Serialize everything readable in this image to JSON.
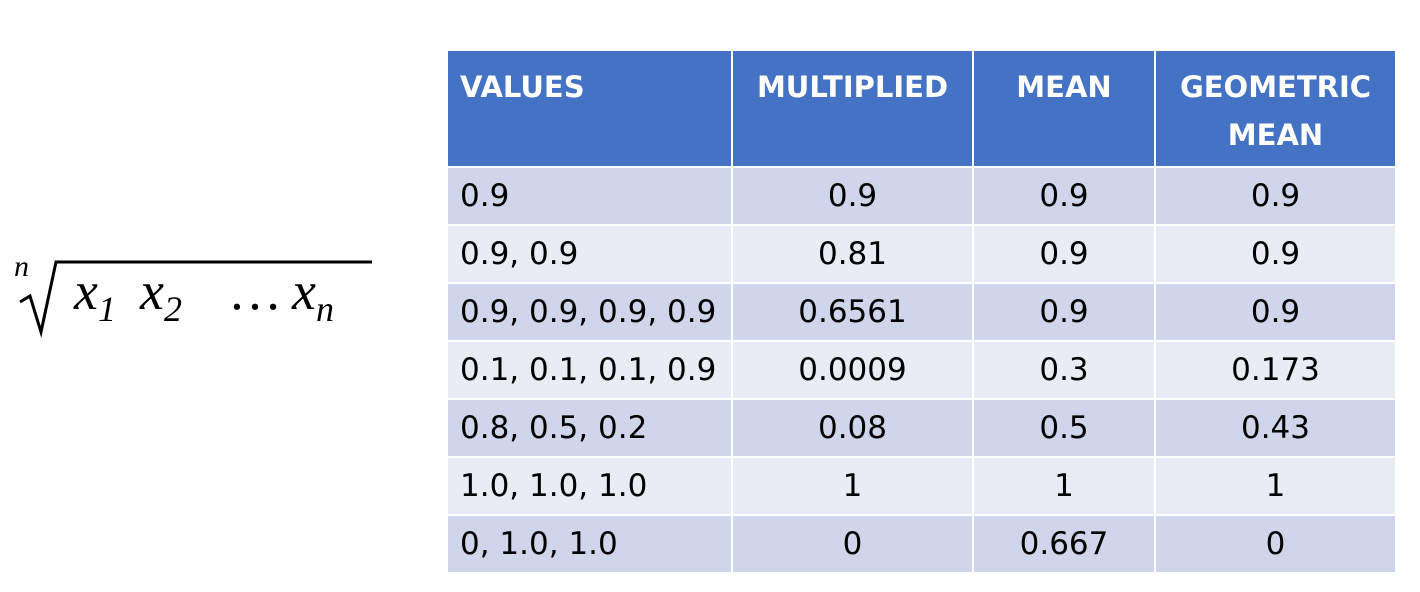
{
  "formula": {
    "root_index": "n",
    "terms": [
      {
        "base": "x",
        "subscript": "1"
      },
      {
        "base": "x",
        "subscript": "2"
      },
      "…",
      {
        "base": "x",
        "subscript": "n"
      }
    ]
  },
  "table": {
    "headers": [
      "VALUES",
      "MULTIPLIED",
      "MEAN",
      "GEOMETRIC MEAN"
    ],
    "rows": [
      [
        "0.9",
        "0.9",
        "0.9",
        "0.9"
      ],
      [
        "0.9, 0.9",
        "0.81",
        "0.9",
        "0.9"
      ],
      [
        "0.9, 0.9, 0.9, 0.9",
        "0.6561",
        "0.9",
        "0.9"
      ],
      [
        "0.1, 0.1, 0.1, 0.9",
        "0.0009",
        "0.3",
        "0.173"
      ],
      [
        "0.8, 0.5, 0.2",
        "0.08",
        "0.5",
        "0.43"
      ],
      [
        "1.0, 1.0, 1.0",
        "1",
        "1",
        "1"
      ],
      [
        "0, 1.0, 1.0",
        "0",
        "0.667",
        "0"
      ]
    ]
  }
}
